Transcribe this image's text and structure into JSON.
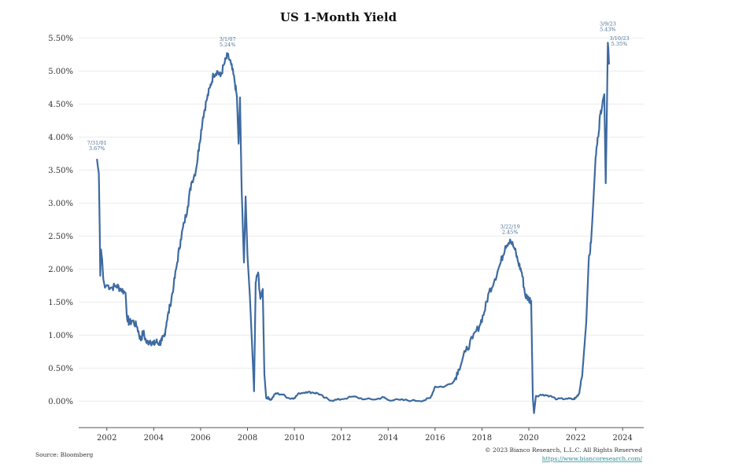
{
  "chart_data": {
    "type": "line",
    "title": "US 1-Month Yield",
    "xlabel": "",
    "ylabel": "",
    "xlim": [
      2000.8,
      2024.9
    ],
    "ylim": [
      -0.4,
      5.6
    ],
    "y_ticks": [
      0.0,
      0.5,
      1.0,
      1.5,
      2.0,
      2.5,
      3.0,
      3.5,
      4.0,
      4.5,
      5.0,
      5.5
    ],
    "y_tick_labels": [
      "0.00%",
      "0.50%",
      "1.00%",
      "1.50%",
      "2.00%",
      "2.50%",
      "3.00%",
      "3.50%",
      "4.00%",
      "4.50%",
      "5.00%",
      "5.50%"
    ],
    "x_ticks": [
      2002,
      2004,
      2006,
      2008,
      2010,
      2012,
      2014,
      2016,
      2018,
      2020,
      2022,
      2024
    ],
    "x_tick_labels": [
      "2002",
      "2004",
      "2006",
      "2008",
      "2010",
      "2012",
      "2014",
      "2016",
      "2018",
      "2020",
      "2022",
      "2024"
    ],
    "grid": true,
    "line_color": "#3e6aa0",
    "series": [
      {
        "points": [
          [
            2001.58,
            3.67
          ],
          [
            2001.62,
            3.55
          ],
          [
            2001.66,
            3.45
          ],
          [
            2001.7,
            2.55
          ],
          [
            2001.72,
            1.9
          ],
          [
            2001.75,
            2.3
          ],
          [
            2001.8,
            2.15
          ],
          [
            2001.85,
            1.85
          ],
          [
            2001.92,
            1.72
          ],
          [
            2002.0,
            1.76
          ],
          [
            2002.2,
            1.72
          ],
          [
            2002.4,
            1.75
          ],
          [
            2002.6,
            1.7
          ],
          [
            2002.8,
            1.64
          ],
          [
            2002.85,
            1.3
          ],
          [
            2002.95,
            1.18
          ],
          [
            2003.1,
            1.22
          ],
          [
            2003.3,
            1.12
          ],
          [
            2003.45,
            0.92
          ],
          [
            2003.55,
            1.05
          ],
          [
            2003.7,
            0.88
          ],
          [
            2003.85,
            0.92
          ],
          [
            2004.0,
            0.86
          ],
          [
            2004.1,
            0.9
          ],
          [
            2004.25,
            0.88
          ],
          [
            2004.35,
            0.92
          ],
          [
            2004.45,
            0.98
          ],
          [
            2004.55,
            1.2
          ],
          [
            2004.7,
            1.45
          ],
          [
            2004.85,
            1.75
          ],
          [
            2005.0,
            2.1
          ],
          [
            2005.15,
            2.45
          ],
          [
            2005.3,
            2.7
          ],
          [
            2005.45,
            2.95
          ],
          [
            2005.6,
            3.3
          ],
          [
            2005.8,
            3.5
          ],
          [
            2005.95,
            3.9
          ],
          [
            2006.1,
            4.3
          ],
          [
            2006.25,
            4.55
          ],
          [
            2006.4,
            4.75
          ],
          [
            2006.55,
            4.95
          ],
          [
            2006.7,
            5.0
          ],
          [
            2006.85,
            4.92
          ],
          [
            2007.0,
            5.1
          ],
          [
            2007.15,
            5.24
          ],
          [
            2007.3,
            5.1
          ],
          [
            2007.45,
            4.85
          ],
          [
            2007.55,
            4.6
          ],
          [
            2007.62,
            3.9
          ],
          [
            2007.68,
            4.6
          ],
          [
            2007.75,
            3.2
          ],
          [
            2007.85,
            2.1
          ],
          [
            2007.92,
            3.1
          ],
          [
            2008.0,
            2.2
          ],
          [
            2008.1,
            1.6
          ],
          [
            2008.2,
            0.8
          ],
          [
            2008.28,
            0.15
          ],
          [
            2008.35,
            1.8
          ],
          [
            2008.45,
            1.95
          ],
          [
            2008.55,
            1.55
          ],
          [
            2008.65,
            1.7
          ],
          [
            2008.72,
            0.4
          ],
          [
            2008.8,
            0.05
          ],
          [
            2008.9,
            0.05
          ],
          [
            2009.0,
            0.02
          ],
          [
            2009.2,
            0.12
          ],
          [
            2009.5,
            0.1
          ],
          [
            2009.8,
            0.04
          ],
          [
            2010.0,
            0.05
          ],
          [
            2010.2,
            0.12
          ],
          [
            2010.5,
            0.14
          ],
          [
            2010.8,
            0.13
          ],
          [
            2011.0,
            0.12
          ],
          [
            2011.3,
            0.05
          ],
          [
            2011.6,
            0.01
          ],
          [
            2012.0,
            0.03
          ],
          [
            2012.5,
            0.07
          ],
          [
            2013.0,
            0.03
          ],
          [
            2013.5,
            0.03
          ],
          [
            2013.8,
            0.06
          ],
          [
            2014.0,
            0.02
          ],
          [
            2014.5,
            0.02
          ],
          [
            2015.0,
            0.01
          ],
          [
            2015.5,
            0.01
          ],
          [
            2015.8,
            0.05
          ],
          [
            2016.0,
            0.22
          ],
          [
            2016.4,
            0.22
          ],
          [
            2016.8,
            0.3
          ],
          [
            2017.0,
            0.48
          ],
          [
            2017.3,
            0.75
          ],
          [
            2017.6,
            0.95
          ],
          [
            2017.9,
            1.15
          ],
          [
            2018.1,
            1.35
          ],
          [
            2018.3,
            1.65
          ],
          [
            2018.55,
            1.85
          ],
          [
            2018.8,
            2.1
          ],
          [
            2019.0,
            2.35
          ],
          [
            2019.2,
            2.45
          ],
          [
            2019.4,
            2.3
          ],
          [
            2019.55,
            2.1
          ],
          [
            2019.7,
            1.95
          ],
          [
            2019.85,
            1.6
          ],
          [
            2020.0,
            1.55
          ],
          [
            2020.1,
            1.52
          ],
          [
            2020.17,
            0.05
          ],
          [
            2020.22,
            -0.18
          ],
          [
            2020.3,
            0.08
          ],
          [
            2020.6,
            0.1
          ],
          [
            2020.9,
            0.08
          ],
          [
            2021.2,
            0.03
          ],
          [
            2021.6,
            0.04
          ],
          [
            2021.9,
            0.03
          ],
          [
            2022.0,
            0.05
          ],
          [
            2022.15,
            0.12
          ],
          [
            2022.3,
            0.5
          ],
          [
            2022.45,
            1.2
          ],
          [
            2022.55,
            2.1
          ],
          [
            2022.65,
            2.4
          ],
          [
            2022.75,
            3.0
          ],
          [
            2022.85,
            3.7
          ],
          [
            2022.95,
            4.0
          ],
          [
            2023.05,
            4.35
          ],
          [
            2023.15,
            4.55
          ],
          [
            2023.22,
            4.65
          ],
          [
            2023.28,
            3.3
          ],
          [
            2023.33,
            4.4
          ],
          [
            2023.37,
            5.43
          ],
          [
            2023.39,
            5.35
          ],
          [
            2023.42,
            5.1
          ]
        ]
      }
    ],
    "annotations": [
      {
        "date": "7/31/01",
        "value": "3.67%",
        "x": 2001.58,
        "y": 3.67
      },
      {
        "date": "3/1/07",
        "value": "5.24%",
        "x": 2007.15,
        "y": 5.24
      },
      {
        "date": "3/22/19",
        "value": "2.45%",
        "x": 2019.2,
        "y": 2.45
      },
      {
        "date": "3/9/23",
        "value": "5.43%",
        "x": 2023.37,
        "y": 5.43
      },
      {
        "date": "3/10/23",
        "value": "5.35%",
        "x": 2023.39,
        "y": 5.35
      }
    ]
  },
  "footer": {
    "source": "Source: Bloomberg",
    "copyright": "© 2023 Bianco Research, L.L.C. All Rights Reserved",
    "url": "https://www.biancoresearch.com/"
  }
}
